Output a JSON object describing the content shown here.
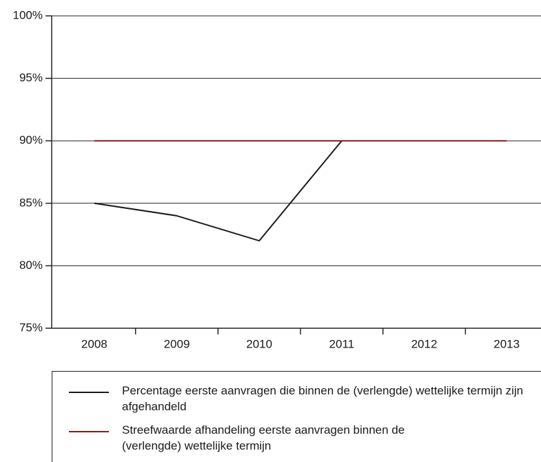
{
  "chart_data": {
    "type": "line",
    "categories": [
      "2008",
      "2009",
      "2010",
      "2011",
      "2012",
      "2013"
    ],
    "series": [
      {
        "name": "Percentage eerste aanvragen die binnen de (verlengde) wettelijke termijn zijn afgehandeld",
        "color": "#1a1a1a",
        "values": [
          85,
          84,
          82,
          90,
          null,
          null
        ]
      },
      {
        "name": "Streefwaarde afhandeling eerste aanvragen binnen de (verlengde) wettelijke termijn",
        "color": "#8b1a10",
        "values": [
          90,
          90,
          90,
          90,
          90,
          90
        ]
      }
    ],
    "ylim": [
      75,
      100
    ],
    "yticks": [
      {
        "value": 75,
        "label": "75%"
      },
      {
        "value": 80,
        "label": "80%"
      },
      {
        "value": 85,
        "label": "85%"
      },
      {
        "value": 90,
        "label": "90%"
      },
      {
        "value": 95,
        "label": "95%"
      },
      {
        "value": 100,
        "label": "100%"
      }
    ],
    "grid": true
  }
}
